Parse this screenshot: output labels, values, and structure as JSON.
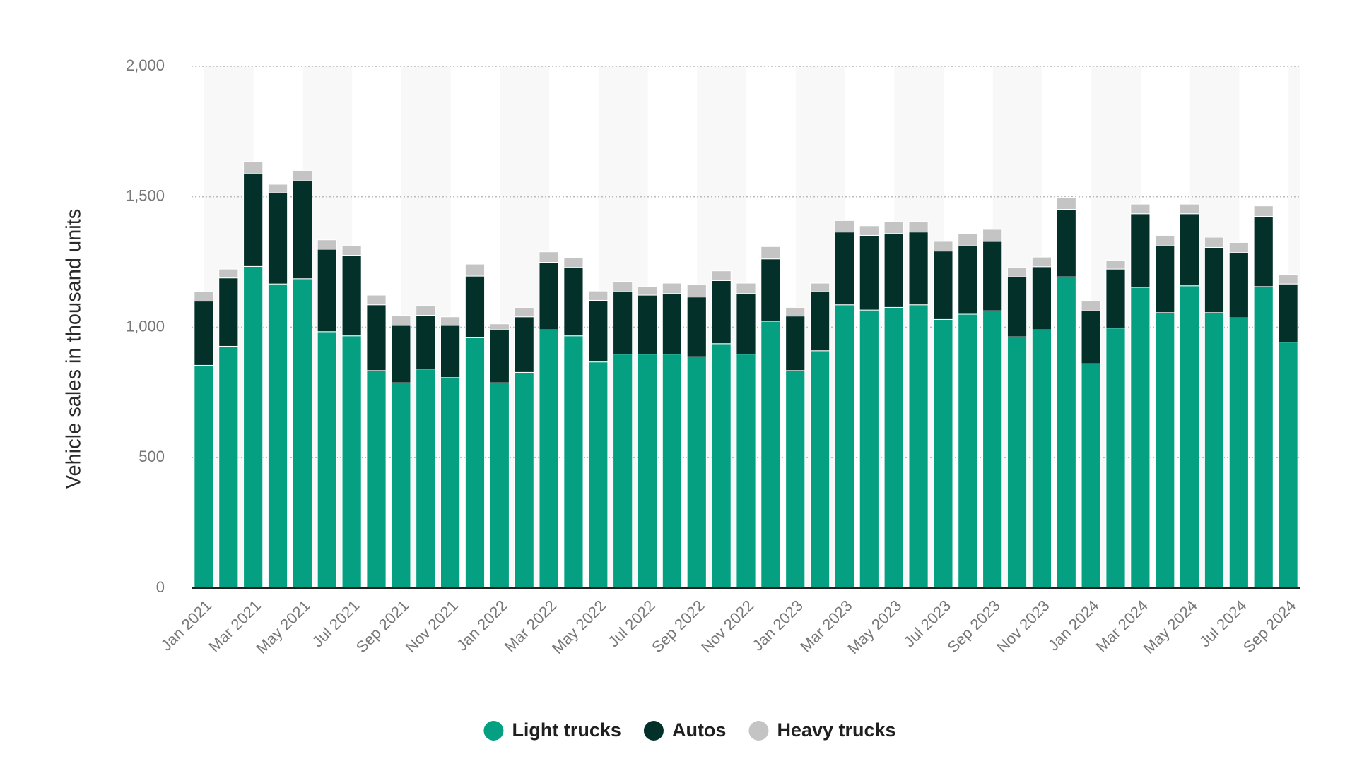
{
  "chart_data": {
    "type": "stacked_bar",
    "y_label": "Vehicle sales in thousand units",
    "categories": [
      "Jan 2021",
      null,
      "Mar 2021",
      null,
      "May 2021",
      null,
      "Jul 2021",
      null,
      "Sep 2021",
      null,
      "Nov 2021",
      null,
      "Jan 2022",
      null,
      "Mar 2022",
      null,
      "May 2022",
      null,
      "Jul 2022",
      null,
      "Sep 2022",
      null,
      "Nov 2022",
      null,
      "Jan 2023",
      null,
      "Mar 2023",
      null,
      "May 2023",
      null,
      "Jul 2023",
      null,
      "Sep 2023",
      null,
      "Nov 2023",
      null,
      "Jan 2024",
      null,
      "Mar 2024",
      null,
      "May 2024",
      null,
      "Jul 2024",
      null,
      "Sep 2024"
    ],
    "series": [
      {
        "name": "Light trucks",
        "color": "#05a082",
        "values": [
          854,
          927,
          1233,
          1166,
          1186,
          983,
          967,
          834,
          787,
          840,
          807,
          960,
          787,
          827,
          990,
          967,
          867,
          897,
          897,
          897,
          887,
          937,
          897,
          1023,
          834,
          910,
          1086,
          1066,
          1076,
          1086,
          1030,
          1050,
          1063,
          963,
          990,
          1193,
          860,
          997,
          1153,
          1056,
          1159,
          1056,
          1036,
          1156,
          943
        ]
      },
      {
        "name": "Autos",
        "color": "#04302a",
        "values": [
          246,
          262,
          355,
          349,
          375,
          316,
          309,
          252,
          220,
          206,
          200,
          236,
          203,
          213,
          259,
          262,
          236,
          239,
          226,
          232,
          229,
          242,
          232,
          239,
          209,
          226,
          279,
          286,
          283,
          279,
          262,
          262,
          266,
          230,
          242,
          259,
          203,
          226,
          282,
          256,
          276,
          250,
          250,
          269,
          223
        ]
      },
      {
        "name": "Heavy trucks",
        "color": "#c4c4c4",
        "values": [
          36,
          34,
          47,
          33,
          40,
          36,
          36,
          37,
          39,
          37,
          33,
          46,
          23,
          36,
          40,
          37,
          36,
          40,
          33,
          40,
          47,
          37,
          40,
          47,
          33,
          33,
          44,
          37,
          46,
          40,
          37,
          47,
          46,
          36,
          37,
          46,
          37,
          33,
          37,
          40,
          37,
          39,
          39,
          40,
          37
        ]
      }
    ],
    "ylim": [
      0,
      2000
    ],
    "yticks": [
      0,
      500,
      {
        "value": 1000,
        "label": "1,000"
      },
      {
        "value": 1500,
        "label": "1,500"
      },
      {
        "value": 2000,
        "label": "2,000"
      }
    ],
    "grid": true
  }
}
